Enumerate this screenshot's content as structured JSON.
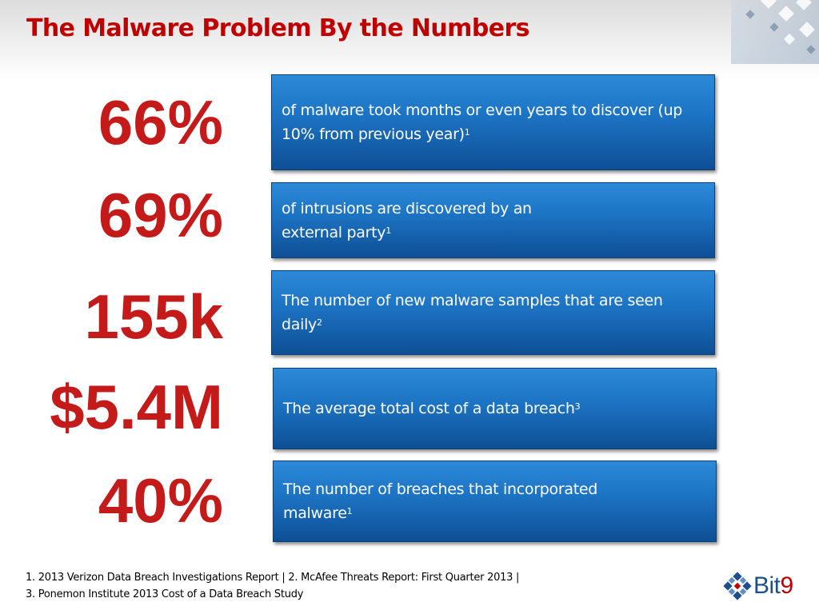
{
  "slide": {
    "title": "The Malware Problem By the Numbers"
  },
  "stats": [
    {
      "value": "66%",
      "text": "of malware took months or even years to discover (up 10% from previous year)",
      "ref": "1"
    },
    {
      "value": "69%",
      "text": "of intrusions are discovered by an external party",
      "ref": "1"
    },
    {
      "value": "155k",
      "text": "The number of new malware samples that are seen daily",
      "ref": "2"
    },
    {
      "value": "$5.4M",
      "text": "The average total cost of a data breach",
      "ref": "3"
    },
    {
      "value": "40%",
      "text": "The number of breaches that incorporated malware",
      "ref": "1"
    }
  ],
  "footnotes": {
    "line1": "1. 2013 Verizon Data Breach Investigations Report | 2. McAfee Threats Report: First Quarter 2013 |",
    "line2": "3. Ponemon Institute 2013 Cost of a Data Breach Study"
  },
  "logo": {
    "word": "Bit",
    "number": "9",
    "icon": "bit9-logo-icon"
  },
  "colors": {
    "title": "#c00000",
    "stat": "#c41a1a",
    "card_top": "#2c8ad8",
    "card_bottom": "#0e4f95",
    "logo_text": "#1e4f8c"
  }
}
